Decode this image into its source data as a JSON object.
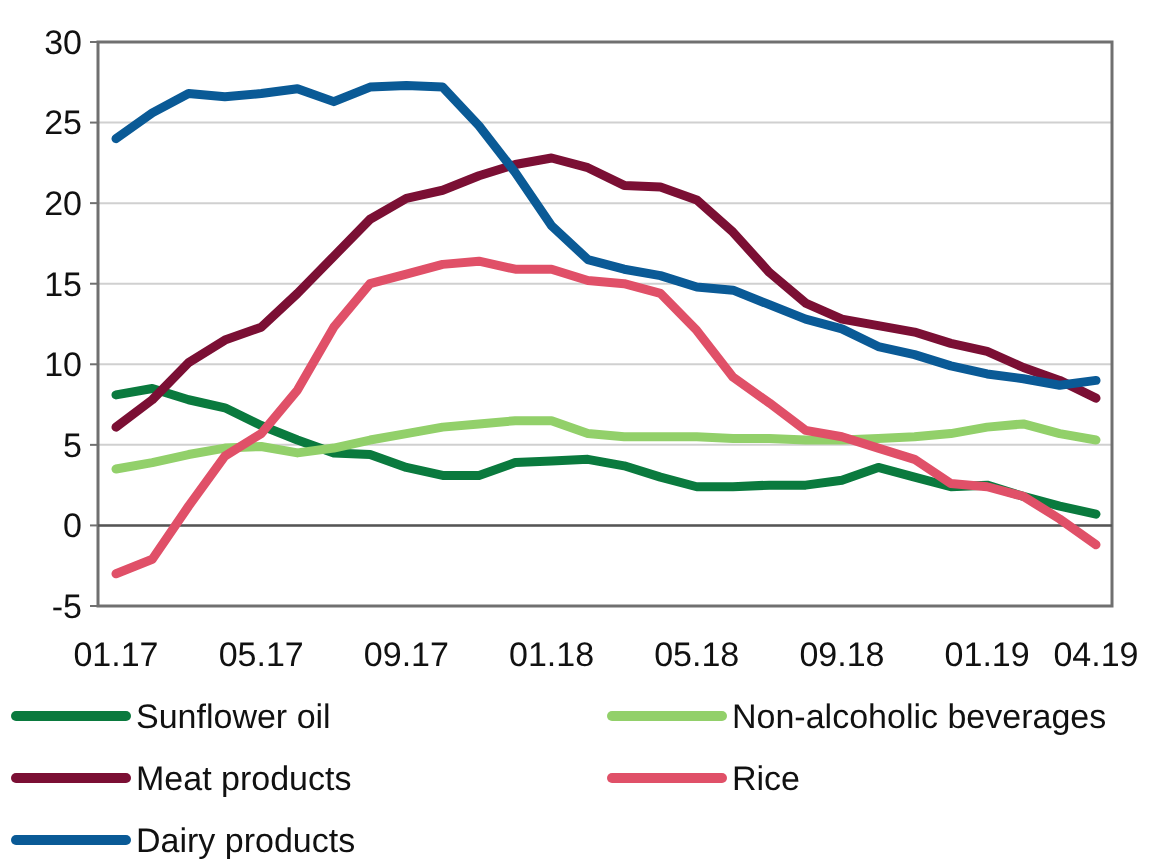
{
  "chart_data": {
    "type": "line",
    "categories": [
      "01.17",
      null,
      null,
      null,
      "05.17",
      null,
      null,
      null,
      "09.17",
      null,
      null,
      null,
      "01.18",
      null,
      null,
      null,
      "05.18",
      null,
      null,
      null,
      "09.18",
      null,
      null,
      null,
      "01.19",
      null,
      null,
      "04.19"
    ],
    "ylim": [
      -5,
      30
    ],
    "yticks": [
      -5,
      0,
      5,
      10,
      15,
      20,
      25,
      30
    ],
    "grid": "y",
    "legend": "bottom",
    "marker": "none",
    "line_style": "solid",
    "series": [
      {
        "name": "Sunflower oil",
        "color": "#0a7a3e",
        "values": [
          8.1,
          8.5,
          7.8,
          7.3,
          6.2,
          5.3,
          4.5,
          4.4,
          3.6,
          3.1,
          3.1,
          3.9,
          4.0,
          4.1,
          3.7,
          3.0,
          2.4,
          2.4,
          2.5,
          2.5,
          2.8,
          3.6,
          3.0,
          2.4,
          2.5,
          1.8,
          1.2,
          0.7
        ]
      },
      {
        "name": "Non-alcoholic beverages",
        "color": "#92d06a",
        "values": [
          3.5,
          3.9,
          4.4,
          4.8,
          4.9,
          4.5,
          4.8,
          5.3,
          5.7,
          6.1,
          6.3,
          6.5,
          6.5,
          5.7,
          5.5,
          5.5,
          5.5,
          5.4,
          5.4,
          5.3,
          5.3,
          5.4,
          5.5,
          5.7,
          6.1,
          6.3,
          5.7,
          5.3
        ]
      },
      {
        "name": "Meat products",
        "color": "#7b0f34",
        "values": [
          6.1,
          7.8,
          10.1,
          11.5,
          12.3,
          14.4,
          16.7,
          19.0,
          20.3,
          20.8,
          21.7,
          22.4,
          22.8,
          22.2,
          21.1,
          21.0,
          20.2,
          18.2,
          15.7,
          13.8,
          12.8,
          12.4,
          12.0,
          11.3,
          10.8,
          9.8,
          9.0,
          7.9
        ]
      },
      {
        "name": "Rice",
        "color": "#e05068",
        "values": [
          -3.0,
          -2.1,
          1.2,
          4.3,
          5.7,
          8.4,
          12.3,
          15.0,
          15.6,
          16.2,
          16.4,
          15.9,
          15.9,
          15.2,
          15.0,
          14.4,
          12.1,
          9.2,
          7.6,
          5.9,
          5.5,
          4.8,
          4.1,
          2.6,
          2.4,
          1.8,
          0.4,
          -1.2
        ]
      },
      {
        "name": "Dairy products",
        "color": "#0a5a96",
        "values": [
          24.0,
          25.6,
          26.8,
          26.6,
          26.8,
          27.1,
          26.3,
          27.2,
          27.3,
          27.2,
          24.8,
          21.9,
          18.6,
          16.5,
          15.9,
          15.5,
          14.8,
          14.6,
          13.7,
          12.8,
          12.2,
          11.1,
          10.6,
          9.9,
          9.4,
          9.1,
          8.7,
          9.0
        ]
      }
    ]
  }
}
